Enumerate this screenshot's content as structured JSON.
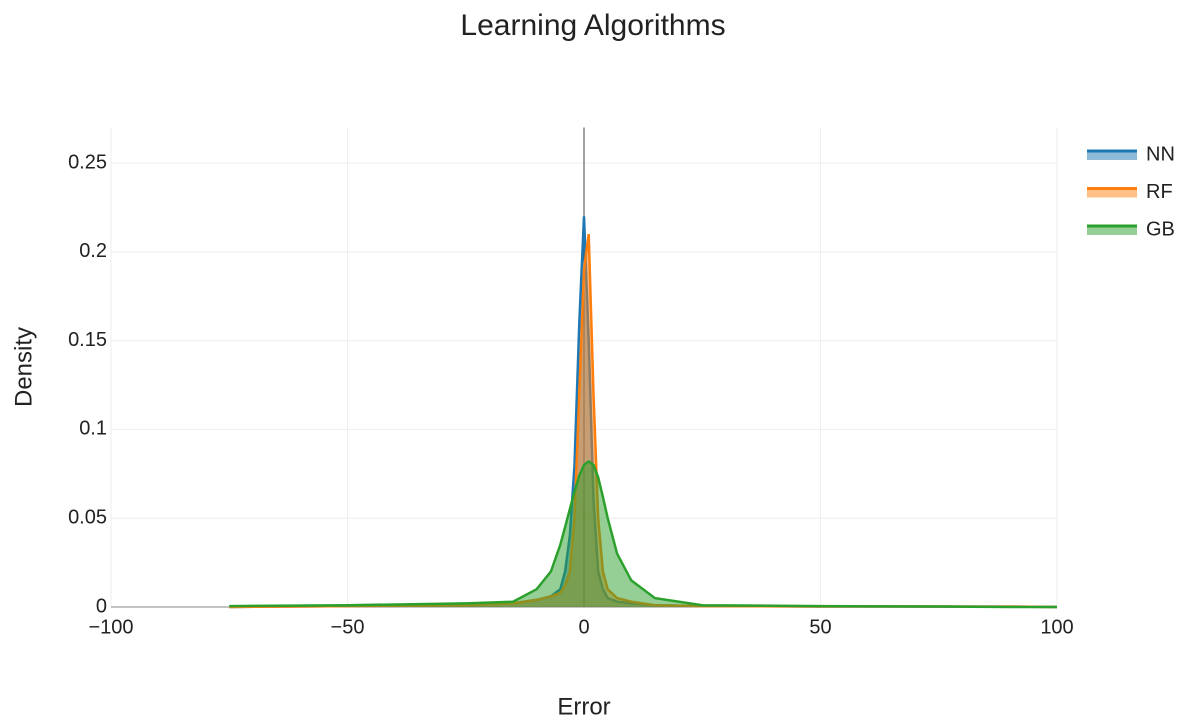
{
  "chart_data": {
    "type": "area",
    "title": "Learning Algorithms",
    "x_label": "Error",
    "y_label": "Density",
    "x": [
      -75,
      -50,
      -25,
      -15,
      -10,
      -7,
      -5,
      -4,
      -3,
      -2,
      -1,
      0,
      1,
      2,
      3,
      4,
      5,
      7,
      10,
      15,
      25,
      50,
      75,
      90,
      100
    ],
    "series": [
      {
        "name": "NN",
        "color": "#1f77b4",
        "values": [
          0,
          0.0005,
          0.001,
          0.002,
          0.004,
          0.006,
          0.01,
          0.02,
          0.04,
          0.08,
          0.16,
          0.22,
          0.15,
          0.06,
          0.02,
          0.01,
          0.005,
          0.003,
          0.002,
          0.001,
          0.0005,
          0.0003,
          0.0002,
          0.0002,
          0
        ]
      },
      {
        "name": "RF",
        "color": "#ff7f0e",
        "values": [
          0,
          0.0005,
          0.001,
          0.002,
          0.004,
          0.006,
          0.008,
          0.012,
          0.02,
          0.05,
          0.12,
          0.19,
          0.21,
          0.12,
          0.05,
          0.02,
          0.01,
          0.005,
          0.003,
          0.001,
          0.0005,
          0.0003,
          0.0003,
          0.0002,
          0
        ]
      },
      {
        "name": "GB",
        "color": "#2ca02c",
        "values": [
          0.0005,
          0.001,
          0.002,
          0.003,
          0.01,
          0.02,
          0.035,
          0.045,
          0.055,
          0.065,
          0.074,
          0.08,
          0.082,
          0.08,
          0.073,
          0.062,
          0.05,
          0.03,
          0.015,
          0.005,
          0.001,
          0.0005,
          0.0003,
          0,
          0
        ]
      }
    ],
    "xlim": [
      -100,
      100
    ],
    "xticks": [
      {
        "value": -100,
        "label": "−100"
      },
      {
        "value": -50,
        "label": "−50"
      },
      0,
      50,
      100
    ],
    "ylim": [
      0,
      0.27
    ],
    "yticks": [
      0,
      0.05,
      0.1,
      0.15,
      0.2,
      0.25
    ],
    "grid": true,
    "legend": "right"
  }
}
